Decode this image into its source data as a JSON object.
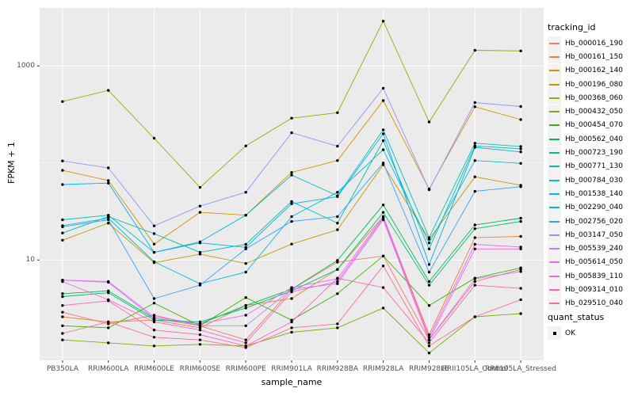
{
  "style": {
    "panel_bg": "#EBEBEB",
    "grid_color": "#FFFFFF",
    "tick_color": "#333333",
    "tick_label_color": "#4D4D4D",
    "point_color": "#000000"
  },
  "chart_data": {
    "type": "line",
    "title": "",
    "xlabel": "sample_name",
    "ylabel": "FPKM + 1",
    "y_scale": "log10",
    "ylim": [
      0.93,
      3980
    ],
    "y_ticks": [
      10,
      1000
    ],
    "y_minor_gridlines": [
      1,
      100
    ],
    "grid": true,
    "legend_position": "right",
    "categories": [
      "PB350LA",
      "RRIM600LA",
      "RRIM600LE",
      "RRIM600SE",
      "RRIM600PE",
      "RRIM901LA",
      "RRIM928BA",
      "RRIM928LA",
      "RRIM928LE",
      "RRII105LA_Control",
      "RRII105LA_Stressed"
    ],
    "legend": {
      "title": "tracking_id"
    },
    "legend2": {
      "title": "quant_status",
      "items": [
        "OK"
      ]
    },
    "series": [
      {
        "name": "Hb_000016_190",
        "color": "#F8766D",
        "values": [
          2.9,
          2.2,
          2.7,
          2.1,
          1.5,
          5.0,
          9.5,
          11,
          1.5,
          6.0,
          8.0
        ]
      },
      {
        "name": "Hb_000161_150",
        "color": "#EA8331",
        "values": [
          2.6,
          2.3,
          2.4,
          2.0,
          3.4,
          4.0,
          8.0,
          28,
          1.7,
          17,
          17.5
        ]
      },
      {
        "name": "Hb_000162_140",
        "color": "#D89000",
        "values": [
          84,
          66,
          14.6,
          31,
          29,
          80,
          106,
          440,
          54,
          380,
          280
        ]
      },
      {
        "name": "Hb_000196_080",
        "color": "#C09B00",
        "values": [
          16,
          24,
          9.4,
          11.5,
          9.2,
          14.6,
          20.5,
          96,
          16.4,
          72,
          59
        ]
      },
      {
        "name": "Hb_000368_060",
        "color": "#A3A500",
        "values": [
          430,
          560,
          180,
          56,
          150,
          290,
          330,
          2900,
          265,
          1450,
          1430
        ]
      },
      {
        "name": "Hb_000432_050",
        "color": "#7CAE00",
        "values": [
          1.5,
          1.4,
          1.3,
          1.35,
          1.3,
          1.8,
          2.0,
          3.2,
          1.1,
          2.6,
          2.8
        ]
      },
      {
        "name": "Hb_000454_070",
        "color": "#39B600",
        "values": [
          2.1,
          2.0,
          3.6,
          2.1,
          4.1,
          2.4,
          4.5,
          11,
          3.4,
          6.5,
          8.3
        ]
      },
      {
        "name": "Hb_000562_040",
        "color": "#00BB4E",
        "values": [
          4.5,
          4.8,
          2.5,
          2.2,
          3.4,
          5.0,
          9.9,
          37,
          6.0,
          23,
          27
        ]
      },
      {
        "name": "Hb_000723_190",
        "color": "#00BF7D",
        "values": [
          4.2,
          4.6,
          2.4,
          2.3,
          3.2,
          4.8,
          8.0,
          31,
          5.5,
          21,
          25
        ]
      },
      {
        "name": "Hb_000771_130",
        "color": "#00C1A3",
        "values": [
          19,
          28,
          18.7,
          12,
          14.5,
          40,
          24,
          170,
          13,
          150,
          140
        ]
      },
      {
        "name": "Hb_000784_030",
        "color": "#00BFC4",
        "values": [
          26,
          29,
          12,
          15.4,
          29,
          75,
          46,
          220,
          17,
          160,
          148
        ]
      },
      {
        "name": "Hb_001538_140",
        "color": "#00BAE0",
        "values": [
          22.6,
          27,
          9.6,
          5.7,
          7.5,
          28,
          50,
          137,
          15,
          106,
          99
        ]
      },
      {
        "name": "Hb_002290_040",
        "color": "#00B0F6",
        "values": [
          60,
          62,
          12,
          15,
          13.5,
          38,
          45,
          200,
          9,
          145,
          130
        ]
      },
      {
        "name": "Hb_002756_020",
        "color": "#35A2FF",
        "values": [
          22,
          26,
          4.0,
          5.5,
          13,
          25,
          28,
          100,
          7.5,
          51,
          57
        ]
      },
      {
        "name": "Hb_003147_050",
        "color": "#9590FF",
        "values": [
          105,
          89,
          22.5,
          36,
          50,
          205,
          149,
          590,
          53,
          420,
          382
        ]
      },
      {
        "name": "Hb_005539_240",
        "color": "#C77CFF",
        "values": [
          6.2,
          5.9,
          2.5,
          2.1,
          2.1,
          5.0,
          5.7,
          26,
          1.5,
          6.4,
          7.6
        ]
      },
      {
        "name": "Hb_005614_050",
        "color": "#E76BF3",
        "values": [
          6.2,
          6.0,
          2.6,
          2.2,
          2.7,
          5.2,
          6.4,
          28,
          1.6,
          14.5,
          13.6
        ]
      },
      {
        "name": "Hb_005839_110",
        "color": "#FA62DB",
        "values": [
          6.0,
          3.9,
          2.3,
          1.9,
          1.4,
          4.7,
          6.0,
          27,
          1.5,
          13,
          13
        ]
      },
      {
        "name": "Hb_009314_010",
        "color": "#FF62BC",
        "values": [
          3.4,
          3.8,
          1.9,
          1.7,
          1.3,
          2.3,
          6.5,
          5.2,
          1.4,
          5.5,
          5.1
        ]
      },
      {
        "name": "Hb_029510_040",
        "color": "#FF6A98",
        "values": [
          1.75,
          2.3,
          1.6,
          1.5,
          1.25,
          2.0,
          2.2,
          8.7,
          1.3,
          2.6,
          3.9
        ]
      }
    ]
  }
}
